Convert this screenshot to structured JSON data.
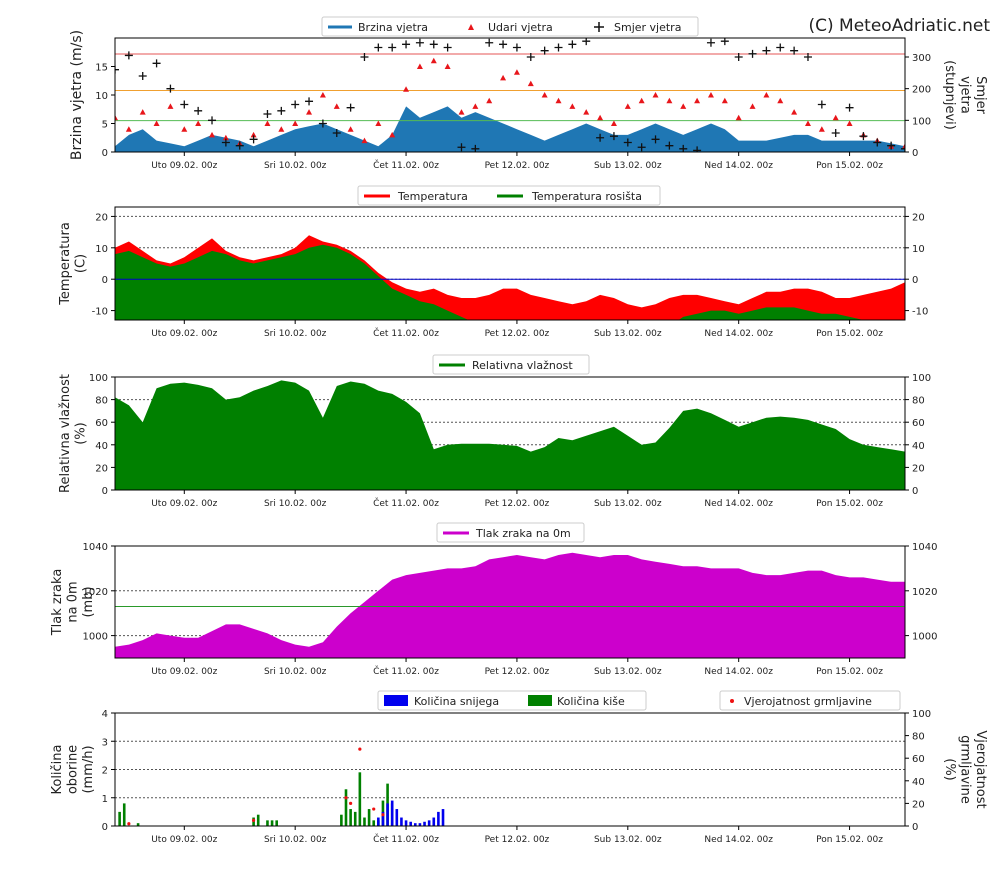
{
  "copyright": "(C) MeteoAdriatic.net",
  "time_axis": {
    "tick_labels": [
      "Uto 09.02. 00z",
      "Sri 10.02. 00z",
      "Čet 11.02. 00z",
      "Pet 12.02. 00z",
      "Sub 13.02. 00z",
      "Ned 14.02. 00z",
      "Pon 15.02. 00z"
    ],
    "tick_hours": [
      12,
      36,
      60,
      84,
      108,
      132,
      156
    ],
    "range_hours": [
      -3,
      168
    ]
  },
  "colors": {
    "wind_speed": "#1f77b4",
    "gusts": "#e8161b",
    "direction": "#111111",
    "temperature": "#ff0000",
    "dewpoint": "#008000",
    "humidity": "#008000",
    "pressure": "#cc00cc",
    "snow": "#0000ee",
    "rain": "#008000",
    "thunder": "#ee1111",
    "ref_red": "#e55555",
    "ref_orange": "#f0a030",
    "ref_green": "#55bb55",
    "zero_line": "#0000cc",
    "pressure_ref": "#2a9a2a"
  },
  "chart_data": [
    {
      "id": "wind",
      "type": "area",
      "ylabel": "Brzina vjetra (m/s)",
      "y2label": [
        "Smjer",
        "vjetra",
        "(stupnjevi)"
      ],
      "ylim": [
        0,
        20
      ],
      "yticks": [
        0,
        5,
        10,
        15
      ],
      "y2lim": [
        0,
        360
      ],
      "y2ticks": [
        0,
        100,
        200,
        300
      ],
      "ref_lines": [
        17.2,
        10.8,
        5.5
      ],
      "legend": [
        "Brzina vjetra",
        "Udari vjetra",
        "Smjer vjetra"
      ],
      "series": [
        {
          "name": "Brzina vjetra",
          "x": [
            -3,
            0,
            3,
            6,
            9,
            12,
            15,
            18,
            21,
            24,
            27,
            30,
            33,
            36,
            39,
            42,
            45,
            48,
            51,
            54,
            57,
            60,
            63,
            66,
            69,
            72,
            75,
            78,
            81,
            84,
            87,
            90,
            93,
            96,
            99,
            102,
            105,
            108,
            111,
            114,
            117,
            120,
            123,
            126,
            129,
            132,
            135,
            138,
            141,
            144,
            147,
            150,
            153,
            156,
            159,
            162,
            165,
            168
          ],
          "y": [
            1,
            3,
            4,
            2,
            1.5,
            1,
            2,
            3,
            2.5,
            2,
            1,
            2,
            3,
            4,
            4.5,
            5,
            4,
            3,
            2,
            1,
            3,
            8,
            6,
            7,
            8,
            6,
            7,
            6,
            5,
            4,
            3,
            2,
            3,
            4,
            5,
            4,
            3,
            3,
            4,
            5,
            4,
            3,
            4,
            5,
            4,
            2,
            2,
            2,
            2.5,
            3,
            3,
            2,
            2,
            2,
            2,
            2,
            1.5,
            1
          ]
        },
        {
          "name": "Udari vjetra",
          "x": [
            -3,
            0,
            3,
            6,
            9,
            12,
            15,
            18,
            21,
            24,
            27,
            30,
            33,
            36,
            39,
            42,
            45,
            48,
            51,
            54,
            57,
            60,
            63,
            66,
            69,
            72,
            75,
            78,
            81,
            84,
            87,
            90,
            93,
            96,
            99,
            102,
            105,
            108,
            111,
            114,
            117,
            120,
            123,
            126,
            129,
            132,
            135,
            138,
            141,
            144,
            147,
            150,
            153,
            156,
            159,
            162,
            165,
            168
          ],
          "y": [
            6,
            4,
            7,
            5,
            8,
            4,
            5,
            3,
            2.5,
            1.5,
            3,
            5,
            4,
            5,
            7,
            10,
            8,
            4,
            2,
            5,
            3,
            11,
            15,
            16,
            15,
            7,
            8,
            9,
            13,
            14,
            12,
            10,
            9,
            8,
            7,
            6,
            5,
            8,
            9,
            10,
            9,
            8,
            9,
            10,
            9,
            6,
            8,
            10,
            9,
            7,
            5,
            4,
            6,
            5,
            3,
            2,
            1,
            1
          ]
        },
        {
          "name": "Smjer vjetra",
          "x": [
            -3,
            0,
            3,
            6,
            9,
            12,
            15,
            18,
            21,
            24,
            27,
            30,
            33,
            36,
            39,
            42,
            45,
            48,
            51,
            54,
            57,
            60,
            63,
            66,
            69,
            72,
            75,
            78,
            81,
            84,
            87,
            90,
            93,
            96,
            99,
            102,
            105,
            108,
            111,
            114,
            117,
            120,
            123,
            126,
            129,
            132,
            135,
            138,
            141,
            144,
            147,
            150,
            153,
            156,
            159,
            162,
            165,
            168
          ],
          "y": [
            260,
            305,
            240,
            280,
            200,
            150,
            130,
            100,
            30,
            20,
            40,
            120,
            130,
            150,
            160,
            90,
            60,
            140,
            300,
            330,
            330,
            340,
            345,
            340,
            330,
            15,
            10,
            345,
            340,
            330,
            300,
            320,
            330,
            340,
            350,
            45,
            50,
            30,
            15,
            40,
            20,
            10,
            5,
            345,
            350,
            300,
            310,
            320,
            330,
            320,
            300,
            150,
            60,
            140,
            50,
            30,
            20,
            10
          ]
        }
      ]
    },
    {
      "id": "temperature",
      "type": "area",
      "ylabel": [
        "Temperatura",
        "(C)"
      ],
      "ylim": [
        -13,
        23
      ],
      "yticks": [
        -10,
        0,
        10,
        20
      ],
      "legend": [
        "Temperatura",
        "Temperatura rosišta"
      ],
      "series": [
        {
          "name": "Temperatura",
          "x": [
            -3,
            0,
            3,
            6,
            9,
            12,
            15,
            18,
            21,
            24,
            27,
            30,
            33,
            36,
            39,
            42,
            45,
            48,
            51,
            54,
            57,
            60,
            63,
            66,
            69,
            72,
            75,
            78,
            81,
            84,
            87,
            90,
            93,
            96,
            99,
            102,
            105,
            108,
            111,
            114,
            117,
            120,
            123,
            126,
            129,
            132,
            135,
            138,
            141,
            144,
            147,
            150,
            153,
            156,
            159,
            162,
            165,
            168
          ],
          "y": [
            10,
            12,
            9,
            6,
            5,
            7,
            10,
            13,
            9,
            7,
            6,
            7,
            8,
            10,
            14,
            12,
            11,
            9,
            6,
            2,
            -1,
            -3,
            -4,
            -3,
            -5,
            -6,
            -6,
            -5,
            -3,
            -3,
            -5,
            -6,
            -7,
            -8,
            -7,
            -5,
            -6,
            -8,
            -9,
            -8,
            -6,
            -5,
            -5,
            -6,
            -7,
            -8,
            -6,
            -4,
            -4,
            -3,
            -3,
            -4,
            -6,
            -6,
            -5,
            -4,
            -3,
            -1
          ]
        },
        {
          "name": "Temperatura rosišta",
          "x": [
            -3,
            0,
            3,
            6,
            9,
            12,
            15,
            18,
            21,
            24,
            27,
            30,
            33,
            36,
            39,
            42,
            45,
            48,
            51,
            54,
            57,
            60,
            63,
            66,
            69,
            72,
            75,
            78,
            81,
            84,
            87,
            90,
            93,
            96,
            99,
            102,
            105,
            108,
            111,
            114,
            117,
            120,
            123,
            126,
            129,
            132,
            135,
            138,
            141,
            144,
            147,
            150,
            153,
            156,
            159,
            162,
            165,
            168
          ],
          "y": [
            8,
            9,
            7,
            5,
            4,
            5,
            7,
            9,
            8,
            6,
            5,
            6,
            7,
            8,
            10,
            11,
            10,
            8,
            5,
            1,
            -3,
            -5,
            -7,
            -8,
            -10,
            -12,
            -14,
            -15,
            -15,
            -15,
            -16,
            -15,
            -16,
            -17,
            -16,
            -17,
            -16,
            -17,
            -18,
            -17,
            -15,
            -12,
            -11,
            -10,
            -10,
            -11,
            -10,
            -9,
            -9,
            -9,
            -10,
            -11,
            -11,
            -12,
            -13,
            -14,
            -14,
            -15
          ]
        }
      ]
    },
    {
      "id": "humidity",
      "type": "area",
      "ylabel": [
        "Relativna vlažnost",
        "(%)"
      ],
      "ylim": [
        0,
        100
      ],
      "yticks": [
        0,
        20,
        40,
        60,
        80,
        100
      ],
      "legend": [
        "Relativna vlažnost"
      ],
      "series": [
        {
          "name": "Relativna vlažnost",
          "x": [
            -3,
            0,
            3,
            6,
            9,
            12,
            15,
            18,
            21,
            24,
            27,
            30,
            33,
            36,
            39,
            42,
            45,
            48,
            51,
            54,
            57,
            60,
            63,
            66,
            69,
            72,
            75,
            78,
            81,
            84,
            87,
            90,
            93,
            96,
            99,
            102,
            105,
            108,
            111,
            114,
            117,
            120,
            123,
            126,
            129,
            132,
            135,
            138,
            141,
            144,
            147,
            150,
            153,
            156,
            159,
            162,
            165,
            168
          ],
          "y": [
            82,
            75,
            60,
            90,
            94,
            95,
            93,
            90,
            80,
            82,
            88,
            92,
            97,
            95,
            88,
            64,
            92,
            96,
            94,
            88,
            85,
            78,
            68,
            36,
            40,
            41,
            41,
            41,
            40,
            39,
            34,
            38,
            46,
            44,
            48,
            52,
            56,
            48,
            40,
            42,
            55,
            70,
            72,
            68,
            62,
            56,
            60,
            64,
            65,
            64,
            62,
            58,
            54,
            45,
            40,
            38,
            36,
            34
          ]
        }
      ]
    },
    {
      "id": "pressure",
      "type": "area",
      "ylabel": [
        "Tlak zraka",
        "na 0m",
        "(mb)"
      ],
      "ylim": [
        990,
        1040
      ],
      "yticks": [
        1000,
        1020,
        1040
      ],
      "ref_lines": [
        1013
      ],
      "legend": [
        "Tlak zraka na 0m"
      ],
      "series": [
        {
          "name": "Tlak zraka na 0m",
          "x": [
            -3,
            0,
            3,
            6,
            9,
            12,
            15,
            18,
            21,
            24,
            27,
            30,
            33,
            36,
            39,
            42,
            45,
            48,
            51,
            54,
            57,
            60,
            63,
            66,
            69,
            72,
            75,
            78,
            81,
            84,
            87,
            90,
            93,
            96,
            99,
            102,
            105,
            108,
            111,
            114,
            117,
            120,
            123,
            126,
            129,
            132,
            135,
            138,
            141,
            144,
            147,
            150,
            153,
            156,
            159,
            162,
            165,
            168
          ],
          "y": [
            995,
            996,
            998,
            1001,
            1000,
            999,
            999,
            1002,
            1005,
            1005,
            1003,
            1001,
            998,
            996,
            995,
            997,
            1004,
            1010,
            1015,
            1020,
            1025,
            1027,
            1028,
            1029,
            1030,
            1030,
            1031,
            1034,
            1035,
            1036,
            1035,
            1034,
            1036,
            1037,
            1036,
            1035,
            1036,
            1036,
            1034,
            1033,
            1032,
            1031,
            1031,
            1030,
            1030,
            1030,
            1028,
            1027,
            1027,
            1028,
            1029,
            1029,
            1027,
            1026,
            1026,
            1025,
            1024,
            1024
          ]
        }
      ]
    },
    {
      "id": "precipitation",
      "type": "bar",
      "ylabel": [
        "Količina",
        "oborine",
        "(mm/h)"
      ],
      "y2label": [
        "Vjerojatnost",
        "grmljavine",
        "(%)"
      ],
      "ylim": [
        0,
        4
      ],
      "yticks": [
        0,
        1,
        2,
        3,
        4
      ],
      "y2lim": [
        0,
        100
      ],
      "y2ticks": [
        0,
        20,
        40,
        60,
        80,
        100
      ],
      "legend": [
        "Količina snijega",
        "Količina kiše",
        "Vjerojatnost grmljavine"
      ],
      "series": [
        {
          "name": "Količina kiše",
          "x": [
            -2,
            -1,
            2,
            27,
            28,
            30,
            31,
            32,
            46,
            47,
            48,
            49,
            50,
            51,
            52,
            53,
            54,
            55,
            56,
            57
          ],
          "y": [
            0.5,
            0.8,
            0.1,
            0.3,
            0.4,
            0.2,
            0.2,
            0.2,
            0.4,
            1.3,
            0.6,
            0.5,
            1.9,
            0.3,
            0.6,
            0.2,
            0.2,
            0.9,
            1.5,
            0.8
          ]
        },
        {
          "name": "Količina snijega",
          "x": [
            54,
            55,
            56,
            57,
            58,
            59,
            60,
            61,
            62,
            63,
            64,
            65,
            66,
            67,
            68
          ],
          "y": [
            0.3,
            0.5,
            0.8,
            0.9,
            0.6,
            0.3,
            0.2,
            0.15,
            0.1,
            0.1,
            0.15,
            0.2,
            0.3,
            0.5,
            0.6
          ]
        },
        {
          "name": "Vjerojatnost grmljavine",
          "x": [
            0,
            27,
            47,
            48,
            50,
            53,
            55
          ],
          "y": [
            2,
            5,
            25,
            20,
            68,
            15,
            10
          ]
        }
      ]
    }
  ]
}
